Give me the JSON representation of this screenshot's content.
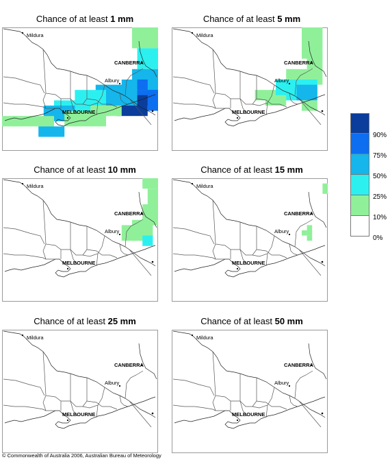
{
  "panels": [
    {
      "title_prefix": "Chance of at least ",
      "amount": "1 mm"
    },
    {
      "title_prefix": "Chance of at least ",
      "amount": "5 mm"
    },
    {
      "title_prefix": "Chance of at least ",
      "amount": "10 mm"
    },
    {
      "title_prefix": "Chance of at least ",
      "amount": "15 mm"
    },
    {
      "title_prefix": "Chance of at least ",
      "amount": "25 mm"
    },
    {
      "title_prefix": "Chance of at least ",
      "amount": "50 mm"
    }
  ],
  "places": {
    "mildura": "Mildura",
    "canberra": "CANBERRA",
    "albury": "Albury",
    "melbourne": "MELBOURNE"
  },
  "legend": {
    "colors": [
      "#0a3d9c",
      "#0d6ef0",
      "#14b6ec",
      "#2cf0f0",
      "#90f09a",
      "#ffffff"
    ],
    "labels": [
      "90%",
      "75%",
      "50%",
      "25%",
      "10%",
      "0%"
    ]
  },
  "copyright": "© Commonwealth of Australia 2006, Australian Bureau of Meteorology"
}
